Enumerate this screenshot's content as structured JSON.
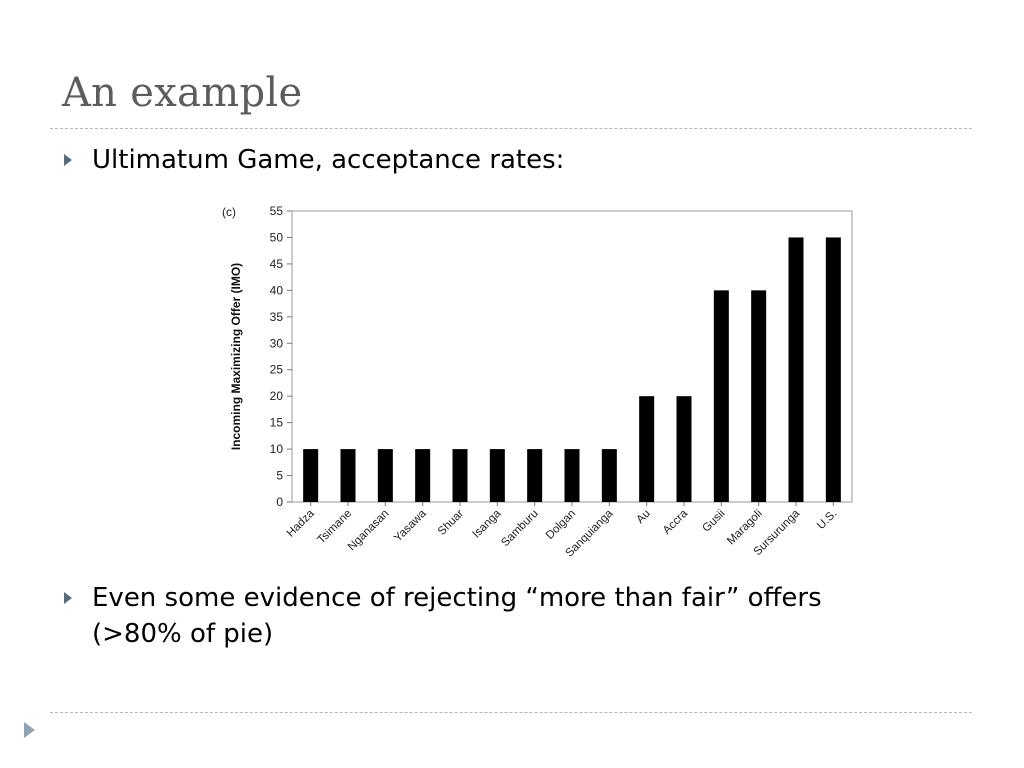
{
  "slide": {
    "title": "An example",
    "bullets": [
      "Ultimatum Game, acceptance rates:",
      "Even some evidence of rejecting “more than fair” offers",
      "(>80% of pie)"
    ]
  },
  "chart_data": {
    "type": "bar",
    "panel_label": "(c)",
    "ylabel": "Incoming Maximizing Offer (IMO)",
    "xlabel": "",
    "ylim": [
      0,
      55
    ],
    "yticks": [
      0,
      5,
      10,
      15,
      20,
      25,
      30,
      35,
      40,
      45,
      50,
      55
    ],
    "categories": [
      "Hadza",
      "Tsimane",
      "Nganasan",
      "Yasawa",
      "Shuar",
      "Isanga",
      "Samburu",
      "Dolgan",
      "Sanquianga",
      "Au",
      "Accra",
      "Gusii",
      "Maragoli",
      "Sursurunga",
      "U.S."
    ],
    "values": [
      10,
      10,
      10,
      10,
      10,
      10,
      10,
      10,
      10,
      20,
      20,
      40,
      40,
      50,
      50
    ],
    "grid": false,
    "bar_color": "#000000"
  }
}
